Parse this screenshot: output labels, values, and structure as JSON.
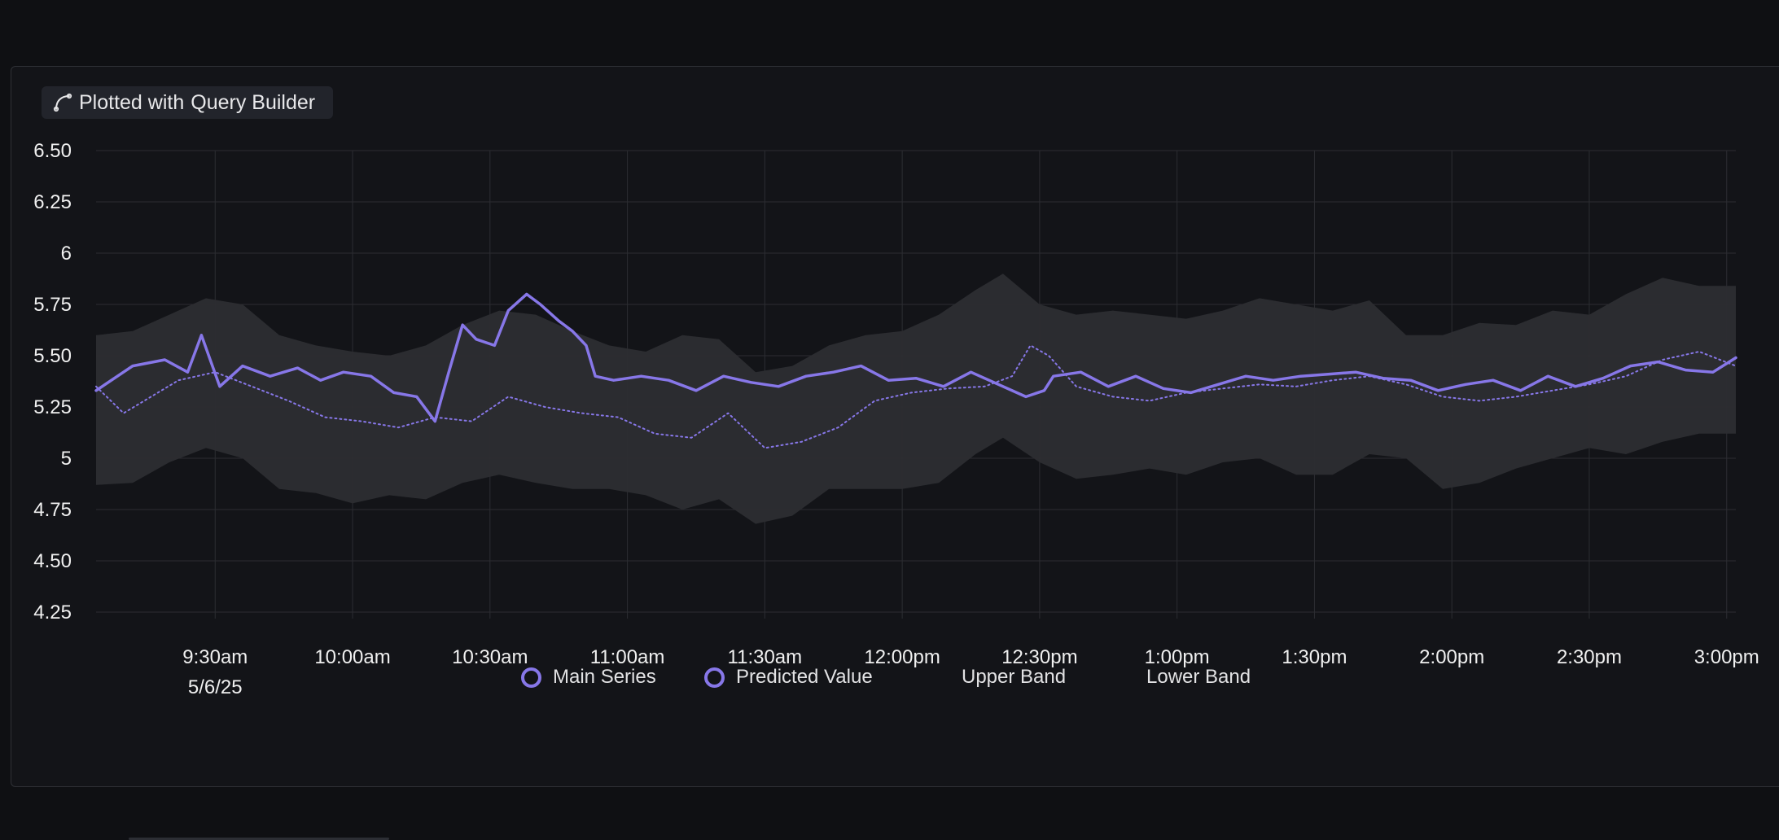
{
  "badge": {
    "prefix": "Plotted with",
    "label": "Query Builder",
    "icon": "query-curve-icon"
  },
  "colors": {
    "background": "#0f1013",
    "panel": "#131418",
    "series": "#8777e8",
    "band": "#2c2d31",
    "grid": "#2c2d32"
  },
  "chart_data": {
    "type": "line",
    "title": "",
    "xlabel": "",
    "ylabel": "",
    "ylim": [
      4.25,
      6.5
    ],
    "yticks": [
      "6.50",
      "6.25",
      "6",
      "5.75",
      "5.50",
      "5.25",
      "5",
      "4.75",
      "4.50",
      "4.25"
    ],
    "x_range": [
      "9:04am",
      "3:02pm"
    ],
    "xticks": [
      "9:30am",
      "10:00am",
      "10:30am",
      "11:00am",
      "11:30am",
      "12:00pm",
      "12:30pm",
      "1:00pm",
      "1:30pm",
      "2:00pm",
      "2:30pm",
      "3:00pm"
    ],
    "x_date_label": "5/6/25",
    "grid": true,
    "legend_position": "bottom",
    "legend": [
      "Main Series",
      "Predicted Value",
      "Upper Band",
      "Lower Band"
    ],
    "series": [
      {
        "name": "Main Series",
        "style": "solid",
        "x": [
          "9:04am",
          "9:12am",
          "9:19am",
          "9:24am",
          "9:27am",
          "9:31am",
          "9:36am",
          "9:42am",
          "9:48am",
          "9:53am",
          "9:58am",
          "10:04am",
          "10:09am",
          "10:14am",
          "10:18am",
          "10:21am",
          "10:24am",
          "10:27am",
          "10:31am",
          "10:34am",
          "10:38am",
          "10:41am",
          "10:45am",
          "10:48am",
          "10:51am",
          "10:53am",
          "10:57am",
          "11:03am",
          "11:09am",
          "11:15am",
          "11:21am",
          "11:27am",
          "11:33am",
          "11:39am",
          "11:45am",
          "11:51am",
          "11:57am",
          "12:03pm",
          "12:09pm",
          "12:15pm",
          "12:21pm",
          "12:27pm",
          "12:31pm",
          "12:33pm",
          "12:39pm",
          "12:45pm",
          "12:51pm",
          "12:57pm",
          "1:03pm",
          "1:09pm",
          "1:15pm",
          "1:21pm",
          "1:27pm",
          "1:33pm",
          "1:39pm",
          "1:45pm",
          "1:51pm",
          "1:57pm",
          "2:03pm",
          "2:09pm",
          "2:15pm",
          "2:21pm",
          "2:27pm",
          "2:33pm",
          "2:39pm",
          "2:45pm",
          "2:51pm",
          "2:57pm",
          "3:02pm"
        ],
        "values": [
          5.33,
          5.45,
          5.48,
          5.42,
          5.6,
          5.35,
          5.45,
          5.4,
          5.44,
          5.38,
          5.42,
          5.4,
          5.32,
          5.3,
          5.18,
          5.42,
          5.65,
          5.58,
          5.55,
          5.72,
          5.8,
          5.75,
          5.67,
          5.62,
          5.55,
          5.4,
          5.38,
          5.4,
          5.38,
          5.33,
          5.4,
          5.37,
          5.35,
          5.4,
          5.42,
          5.45,
          5.38,
          5.39,
          5.35,
          5.42,
          5.36,
          5.3,
          5.33,
          5.4,
          5.42,
          5.35,
          5.4,
          5.34,
          5.32,
          5.36,
          5.4,
          5.38,
          5.4,
          5.41,
          5.42,
          5.39,
          5.38,
          5.33,
          5.36,
          5.38,
          5.33,
          5.4,
          5.35,
          5.39,
          5.45,
          5.47,
          5.43,
          5.42,
          5.49
        ]
      },
      {
        "name": "Predicted Value",
        "style": "dotted",
        "x": [
          "9:04am",
          "9:10am",
          "9:16am",
          "9:22am",
          "9:30am",
          "9:38am",
          "9:46am",
          "9:54am",
          "10:02am",
          "10:10am",
          "10:18am",
          "10:26am",
          "10:34am",
          "10:42am",
          "10:50am",
          "10:58am",
          "11:06am",
          "11:14am",
          "11:22am",
          "11:30am",
          "11:38am",
          "11:46am",
          "11:54am",
          "12:02pm",
          "12:10pm",
          "12:18pm",
          "12:24pm",
          "12:28pm",
          "12:32pm",
          "12:38pm",
          "12:46pm",
          "12:54pm",
          "1:02pm",
          "1:10pm",
          "1:18pm",
          "1:26pm",
          "1:34pm",
          "1:42pm",
          "1:50pm",
          "1:58pm",
          "2:06pm",
          "2:14pm",
          "2:22pm",
          "2:30pm",
          "2:38pm",
          "2:46pm",
          "2:54pm",
          "3:02pm"
        ],
        "values": [
          5.35,
          5.22,
          5.3,
          5.38,
          5.42,
          5.35,
          5.28,
          5.2,
          5.18,
          5.15,
          5.2,
          5.18,
          5.3,
          5.25,
          5.22,
          5.2,
          5.12,
          5.1,
          5.22,
          5.05,
          5.08,
          5.15,
          5.28,
          5.32,
          5.34,
          5.35,
          5.4,
          5.55,
          5.5,
          5.35,
          5.3,
          5.28,
          5.32,
          5.34,
          5.36,
          5.35,
          5.38,
          5.4,
          5.36,
          5.3,
          5.28,
          5.3,
          5.33,
          5.36,
          5.4,
          5.48,
          5.52,
          5.45
        ]
      },
      {
        "name": "Upper Band",
        "style": "band",
        "x": [
          "9:04am",
          "9:12am",
          "9:20am",
          "9:28am",
          "9:36am",
          "9:44am",
          "9:52am",
          "10:00am",
          "10:08am",
          "10:16am",
          "10:24am",
          "10:32am",
          "10:40am",
          "10:48am",
          "10:56am",
          "11:04am",
          "11:12am",
          "11:20am",
          "11:28am",
          "11:36am",
          "11:44am",
          "11:52am",
          "12:00pm",
          "12:08pm",
          "12:16pm",
          "12:22pm",
          "12:30pm",
          "12:38pm",
          "12:46pm",
          "12:54pm",
          "1:02pm",
          "1:10pm",
          "1:18pm",
          "1:26pm",
          "1:34pm",
          "1:42pm",
          "1:50pm",
          "1:58pm",
          "2:06pm",
          "2:14pm",
          "2:22pm",
          "2:30pm",
          "2:38pm",
          "2:46pm",
          "2:54pm",
          "3:02pm"
        ],
        "values": [
          5.6,
          5.62,
          5.7,
          5.78,
          5.75,
          5.6,
          5.55,
          5.52,
          5.5,
          5.55,
          5.65,
          5.72,
          5.7,
          5.62,
          5.55,
          5.52,
          5.6,
          5.58,
          5.42,
          5.45,
          5.55,
          5.6,
          5.62,
          5.7,
          5.82,
          5.9,
          5.75,
          5.7,
          5.72,
          5.7,
          5.68,
          5.72,
          5.78,
          5.75,
          5.72,
          5.77,
          5.6,
          5.6,
          5.66,
          5.65,
          5.72,
          5.7,
          5.8,
          5.88,
          5.84,
          5.84
        ]
      },
      {
        "name": "Lower Band",
        "style": "band",
        "x": [
          "9:04am",
          "9:12am",
          "9:20am",
          "9:28am",
          "9:36am",
          "9:44am",
          "9:52am",
          "10:00am",
          "10:08am",
          "10:16am",
          "10:24am",
          "10:32am",
          "10:40am",
          "10:48am",
          "10:56am",
          "11:04am",
          "11:12am",
          "11:20am",
          "11:28am",
          "11:36am",
          "11:44am",
          "11:52am",
          "12:00pm",
          "12:08pm",
          "12:16pm",
          "12:22pm",
          "12:30pm",
          "12:38pm",
          "12:46pm",
          "12:54pm",
          "1:02pm",
          "1:10pm",
          "1:18pm",
          "1:26pm",
          "1:34pm",
          "1:42pm",
          "1:50pm",
          "1:58pm",
          "2:06pm",
          "2:14pm",
          "2:22pm",
          "2:30pm",
          "2:38pm",
          "2:46pm",
          "2:54pm",
          "3:02pm"
        ],
        "values": [
          4.87,
          4.88,
          4.98,
          5.05,
          5.0,
          4.85,
          4.83,
          4.78,
          4.82,
          4.8,
          4.88,
          4.92,
          4.88,
          4.85,
          4.85,
          4.82,
          4.75,
          4.8,
          4.68,
          4.72,
          4.85,
          4.85,
          4.85,
          4.88,
          5.02,
          5.1,
          4.98,
          4.9,
          4.92,
          4.95,
          4.92,
          4.98,
          5.0,
          4.92,
          4.92,
          5.02,
          5.0,
          4.85,
          4.88,
          4.95,
          5.0,
          5.05,
          5.02,
          5.08,
          5.12,
          5.12
        ]
      }
    ]
  }
}
